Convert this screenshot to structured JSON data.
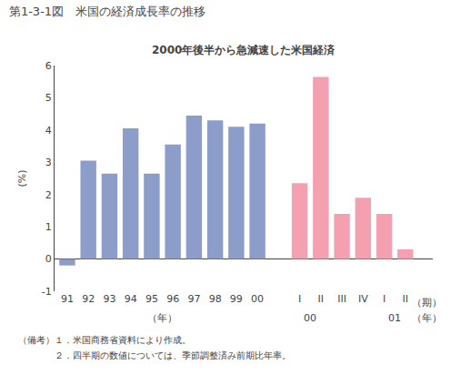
{
  "chart_data": {
    "type": "bar",
    "title": "第1-3-1図　米国の経済成長率の推移",
    "subtitle": "2000年後半から急減速した米国経済",
    "ylabel": "(%)",
    "categories": [
      "91",
      "92",
      "93",
      "94",
      "95",
      "96",
      "97",
      "98",
      "99",
      "00",
      "I",
      "II",
      "III",
      "IV",
      "I",
      "II"
    ],
    "series": [
      {
        "color": "#8b9dc8",
        "values": [
          -0.2,
          3.05,
          2.65,
          4.05,
          2.65,
          3.55,
          4.45,
          4.3,
          4.1,
          4.2,
          null,
          null,
          null,
          null,
          null,
          null
        ]
      },
      {
        "color": "#f4a0b0",
        "values": [
          null,
          null,
          null,
          null,
          null,
          null,
          null,
          null,
          null,
          null,
          2.35,
          5.65,
          1.4,
          1.9,
          1.4,
          0.3
        ]
      }
    ],
    "ylim": [
      -1,
      6
    ],
    "yticks": [
      -1,
      0,
      1,
      2,
      3,
      4,
      5,
      6
    ],
    "grid": false,
    "annotations": [
      {
        "text": "（年）",
        "x": 4.5,
        "line": 2
      },
      {
        "text": "00",
        "x": 10.5,
        "line": 2
      },
      {
        "text": "01",
        "x": 14.5,
        "line": 2
      },
      {
        "text": "（期）",
        "x": 16,
        "line": 1
      },
      {
        "text": "（年）",
        "x": 16,
        "line": 2
      }
    ],
    "notes": [
      "（備考）１．米国商務省資料により作成。",
      "　　　　２．四半期の数値については、季節調整済み前期比年率。"
    ]
  }
}
